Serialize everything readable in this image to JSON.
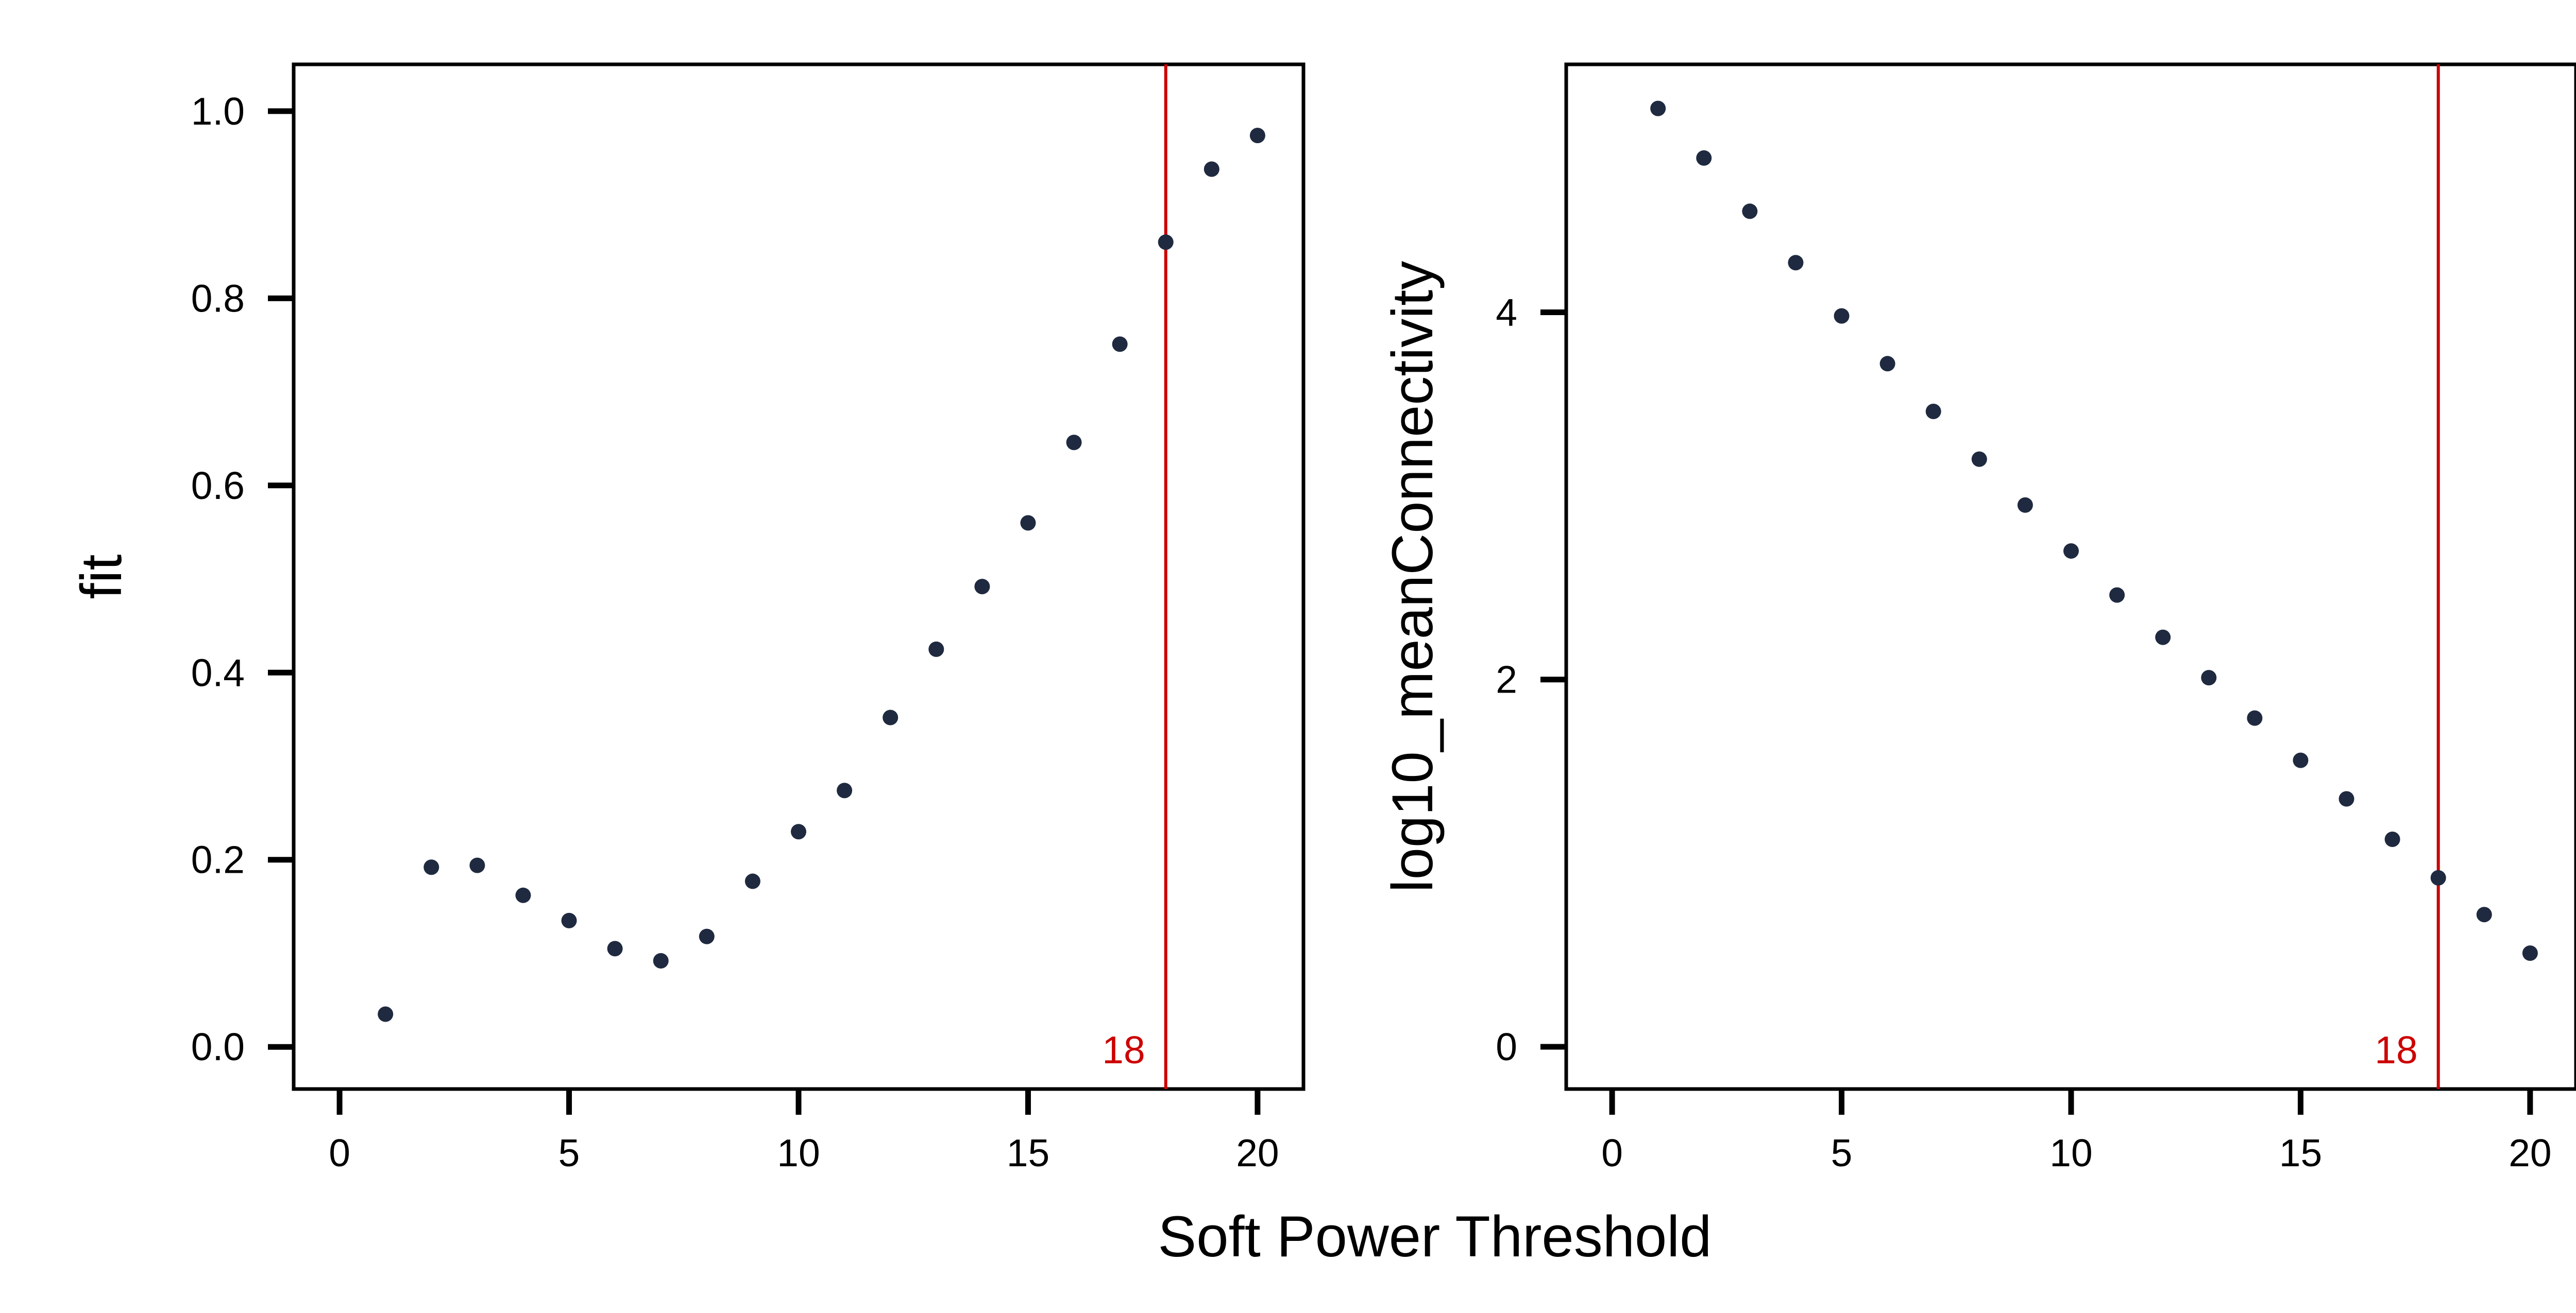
{
  "chart_data": {
    "type": "scatter",
    "xlabel": "Soft Power Threshold",
    "colors": {
      "points": "#1f2a40",
      "reference_line": "#cc0000",
      "axes": "#000000"
    },
    "reference_line": {
      "x": 18,
      "label": "18"
    },
    "panels": [
      {
        "ylabel": "fit",
        "xlim": [
          -1,
          21
        ],
        "ylim": [
          -0.045,
          1.05
        ],
        "xticks": [
          0,
          5,
          10,
          15,
          20
        ],
        "yticks": [
          0.0,
          0.2,
          0.4,
          0.6,
          0.8,
          1.0
        ],
        "ytick_labels": [
          "0.0",
          "0.2",
          "0.4",
          "0.6",
          "0.8",
          "1.0"
        ],
        "x": [
          1,
          2,
          3,
          4,
          5,
          6,
          7,
          8,
          9,
          10,
          11,
          12,
          13,
          14,
          15,
          16,
          17,
          18,
          19,
          20
        ],
        "y": [
          0.035,
          0.192,
          0.194,
          0.162,
          0.135,
          0.105,
          0.092,
          0.118,
          0.177,
          0.23,
          0.274,
          0.352,
          0.425,
          0.492,
          0.56,
          0.646,
          0.751,
          0.86,
          0.938,
          0.974
        ]
      },
      {
        "ylabel": "log10_meanConnectivity",
        "xlim": [
          -1,
          21
        ],
        "ylim": [
          -0.23,
          5.35
        ],
        "xticks": [
          0,
          5,
          10,
          15,
          20
        ],
        "yticks": [
          0,
          2,
          4
        ],
        "ytick_labels": [
          "0",
          "2",
          "4"
        ],
        "x": [
          1,
          2,
          3,
          4,
          5,
          6,
          7,
          8,
          9,
          10,
          11,
          12,
          13,
          14,
          15,
          16,
          17,
          18,
          19,
          20
        ],
        "y": [
          5.11,
          4.84,
          4.55,
          4.27,
          3.98,
          3.72,
          3.46,
          3.2,
          2.95,
          2.7,
          2.46,
          2.23,
          2.01,
          1.79,
          1.56,
          1.35,
          1.13,
          0.92,
          0.72,
          0.51
        ]
      }
    ]
  }
}
